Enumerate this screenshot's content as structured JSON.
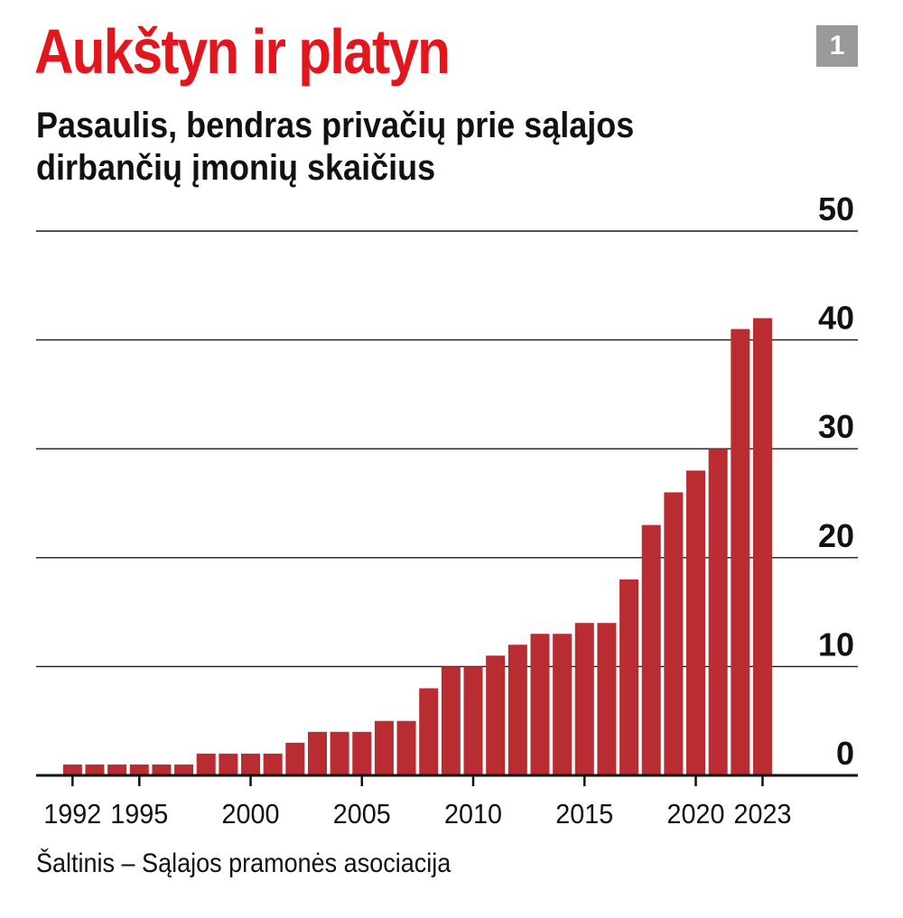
{
  "chart_data": {
    "type": "bar",
    "title": "Aukštyn ir platyn",
    "subtitle": "Pasaulis, bendras privačių prie sąlajos dirbančių įmonių skaičius",
    "badge": "1",
    "source": "Šaltinis – Sąlajos pramonės asociacija",
    "x": [
      1992,
      1993,
      1994,
      1995,
      1996,
      1997,
      1998,
      1999,
      2000,
      2001,
      2002,
      2003,
      2004,
      2005,
      2006,
      2007,
      2008,
      2009,
      2010,
      2011,
      2012,
      2013,
      2014,
      2015,
      2016,
      2017,
      2018,
      2019,
      2020,
      2021,
      2022,
      2023
    ],
    "values": [
      1,
      1,
      1,
      1,
      1,
      1,
      2,
      2,
      2,
      2,
      3,
      4,
      4,
      4,
      5,
      5,
      8,
      10,
      10,
      11,
      12,
      13,
      13,
      14,
      14,
      18,
      23,
      26,
      28,
      30,
      41,
      42
    ],
    "x_tick_labels": [
      1992,
      1995,
      2000,
      2005,
      2010,
      2015,
      2020,
      2023
    ],
    "ylim": [
      0,
      50
    ],
    "y_ticks": [
      0,
      10,
      20,
      30,
      40,
      50
    ],
    "grid": true,
    "y_axis_side": "right",
    "colors": {
      "bar": "#b82c32",
      "grid": "#1a1a1a"
    }
  }
}
